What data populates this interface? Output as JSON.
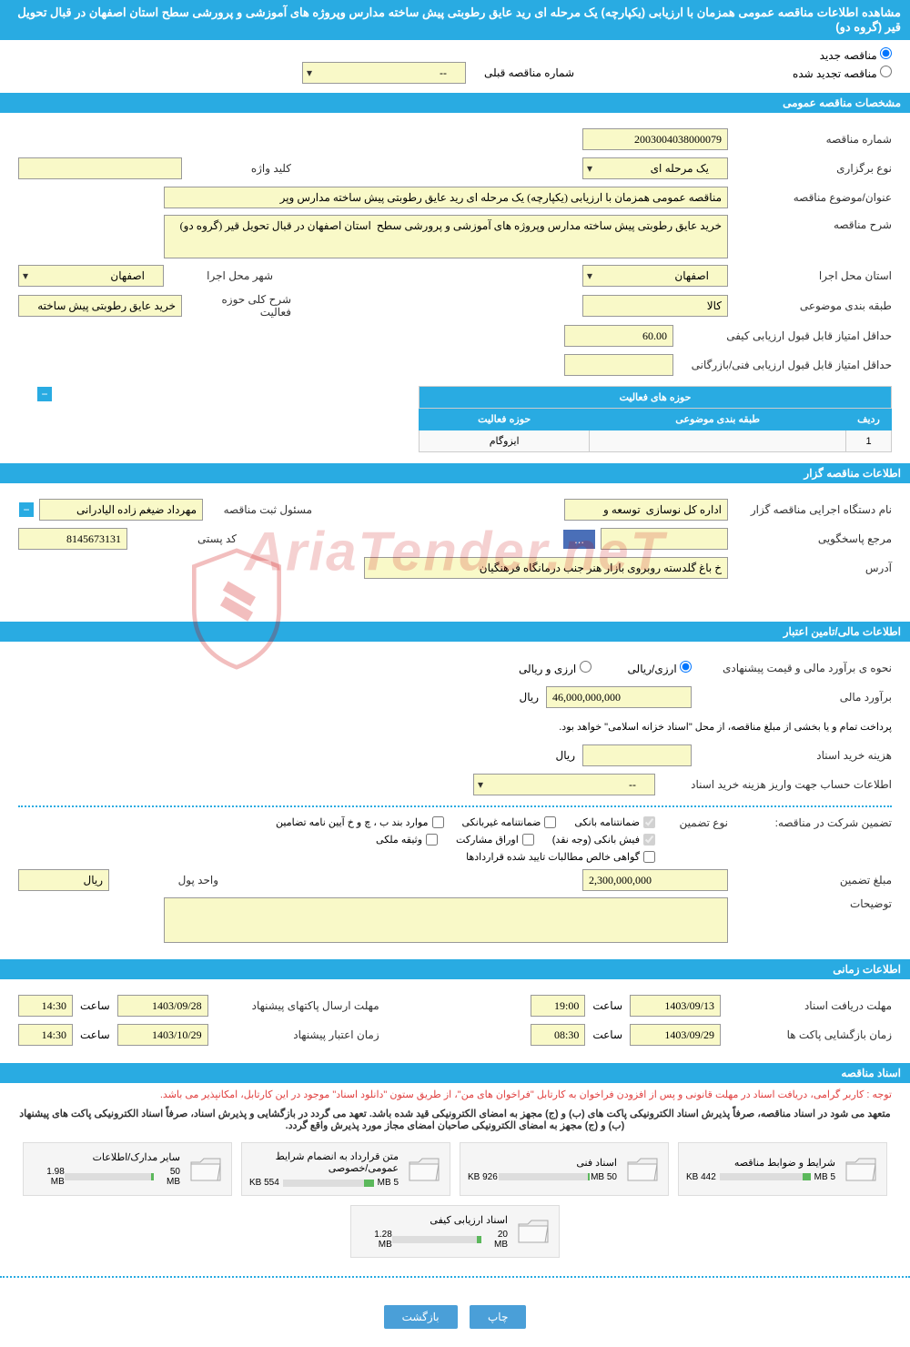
{
  "title": "مشاهده اطلاعات مناقصه عمومی همزمان با ارزیابی (یکپارچه) یک مرحله ای رید عایق رطوبتی پیش ساخته مدارس وپروژه های آموزشی و پرورشی سطح استان اصفهان در قبال تحویل قیر (گروه دو)",
  "radios": {
    "new": "مناقصه جدید",
    "renewed": "مناقصه تجدید شده",
    "prev_num_label": "شماره مناقصه قبلی",
    "prev_num_value": "--"
  },
  "sections": {
    "general": "مشخصات مناقصه عمومی",
    "organizer": "اطلاعات مناقصه گزار",
    "financial": "اطلاعات مالی/تامین اعتبار",
    "timing": "اطلاعات زمانی",
    "docs": "اسناد مناقصه"
  },
  "general": {
    "tender_num_label": "شماره مناقصه",
    "tender_num": "2003004038000079",
    "holding_type_label": "نوع برگزاری",
    "holding_type": "یک مرحله ای",
    "keyword_label": "کلید واژه",
    "keyword": "",
    "subject_label": "عنوان/موضوع مناقصه",
    "subject": "مناقصه عمومی همزمان با ارزیابی (یکپارچه) یک مرحله ای رید عایق رطوبتی پیش ساخته مدارس وپر",
    "desc_label": "شرح مناقصه",
    "desc": "خرید عایق رطوبتی پیش ساخته مدارس وپروژه های آموزشی و پرورشی سطح  استان اصفهان در قبال تحویل قیر (گروه دو)",
    "exec_province_label": "استان محل اجرا",
    "exec_province": "اصفهان",
    "exec_city_label": "شهر محل اجرا",
    "exec_city": "اصفهان",
    "classification_label": "طبقه بندی موضوعی",
    "classification": "کالا",
    "activity_desc_label": "شرح کلی حوزه فعالیت",
    "activity_desc": "خرید عایق رطوبتی پیش ساخته",
    "min_quality_label": "حداقل امتیاز قابل قبول ارزیابی کیفی",
    "min_quality": "60.00",
    "min_tech_label": "حداقل امتیاز قابل قبول ارزیابی فنی/بازرگانی",
    "min_tech": ""
  },
  "activity_table": {
    "title": "حوزه های فعالیت",
    "cols": {
      "row": "ردیف",
      "class": "طبقه بندی موضوعی",
      "area": "حوزه فعالیت"
    },
    "rows": [
      {
        "row": "1",
        "class": "",
        "area": "ایزوگام"
      }
    ]
  },
  "organizer": {
    "exec_org_label": "نام دستگاه اجرایی مناقصه گزار",
    "exec_org": "اداره کل نوسازی  توسعه و",
    "reg_officer_label": "مسئول ثبت مناقصه",
    "reg_officer": "مهرداد ضیغم زاده الیادرانی",
    "responder_label": "مرجع پاسخگویی",
    "responder": "",
    "browse_btn": "...",
    "postcode_label": "کد پستی",
    "postcode": "8145673131",
    "address_label": "آدرس",
    "address": "خ باغ گلدسته روبروی بازار هنر جنب درمانگاه فرهنگیان"
  },
  "financial": {
    "estimate_method_label": "نحوه ی برآورد مالی و قیمت پیشنهادی",
    "opt_rial": "ارزی/ریالی",
    "opt_currency": "ارزی و ریالی",
    "estimate_label": "برآورد مالی",
    "estimate": "46,000,000,000",
    "unit_rial": "ریال",
    "treasury_note": "پرداخت تمام و یا بخشی از مبلغ مناقصه، از محل \"اسناد خزانه اسلامی\" خواهد بود.",
    "doc_cost_label": "هزینه خرید اسناد",
    "doc_cost": "",
    "deposit_account_label": "اطلاعات حساب جهت واریز هزینه خرید اسناد",
    "deposit_account": "--",
    "guarantee_label": "تضمین شرکت در مناقصه:",
    "guarantee_type_label": "نوع تضمین",
    "g_bank": "ضمانتنامه بانکی",
    "g_nonbank": "ضمانتنامه غیربانکی",
    "g_bylaw": "موارد بند ب ، چ و خ آیین نامه تضامین",
    "g_cash": "فیش بانکی (وجه نقد)",
    "g_bonds": "اوراق مشارکت",
    "g_property": "وثیقه ملکی",
    "g_certified": "گواهی خالص مطالبات تایید شده قراردادها",
    "guarantee_amount_label": "مبلغ تضمین",
    "guarantee_amount": "2,300,000,000",
    "currency_unit_label": "واحد پول",
    "currency_unit": "ریال",
    "notes_label": "توضیحات"
  },
  "timing": {
    "doc_deadline_label": "مهلت دریافت اسناد",
    "doc_deadline": "1403/09/13",
    "time_label": "ساعت",
    "doc_deadline_time": "19:00",
    "bid_deadline_label": "مهلت ارسال پاکتهای پیشنهاد",
    "bid_deadline": "1403/09/28",
    "bid_deadline_time": "14:30",
    "opening_label": "زمان بازگشایی پاکت ها",
    "opening": "1403/09/29",
    "opening_time": "08:30",
    "validity_label": "زمان اعتبار پیشنهاد",
    "validity": "1403/10/29",
    "validity_time": "14:30"
  },
  "docs": {
    "note1": "توجه : کاربر گرامی، دریافت اسناد در مهلت قانونی و پس از افزودن فراخوان به کارتابل \"فراخوان های من\"، از طریق ستون \"دانلود اسناد\" موجود در این کارتابل، امکانپذیر می باشد.",
    "note2": "متعهد می شود در اسناد مناقصه، صرفاً پذیرش اسناد الکترونیکی پاکت های (ب) و (ج) مجهز به امضای الکترونیکی قید شده باشد. تعهد می گردد در بازگشایی و پذیرش اسناد، صرفاً اسناد الکترونیکی پاکت های پیشنهاد (ب) و (ج) مجهز به امضای الکترونیکی صاحبان امضای مجاز مورد پذیرش واقع گردد.",
    "files": [
      {
        "title": "شرایط و ضوابط مناقصه",
        "used": "442 KB",
        "total": "5 MB",
        "pct": 9
      },
      {
        "title": "اسناد فنی",
        "used": "926 KB",
        "total": "50 MB",
        "pct": 2
      },
      {
        "title": "متن قرارداد به انضمام شرایط عمومی/خصوصی",
        "used": "554 KB",
        "total": "5 MB",
        "pct": 11
      },
      {
        "title": "سایر مدارک/اطلاعات",
        "used": "1.98 MB",
        "total": "50 MB",
        "pct": 4
      },
      {
        "title": "اسناد ارزیابی کیفی",
        "used": "1.28 MB",
        "total": "20 MB",
        "pct": 6
      }
    ]
  },
  "buttons": {
    "print": "چاپ",
    "back": "بازگشت"
  },
  "colors": {
    "header_bg": "#29abe2",
    "input_bg": "#f9f9c8",
    "btn_bg": "#4a9fd8"
  }
}
